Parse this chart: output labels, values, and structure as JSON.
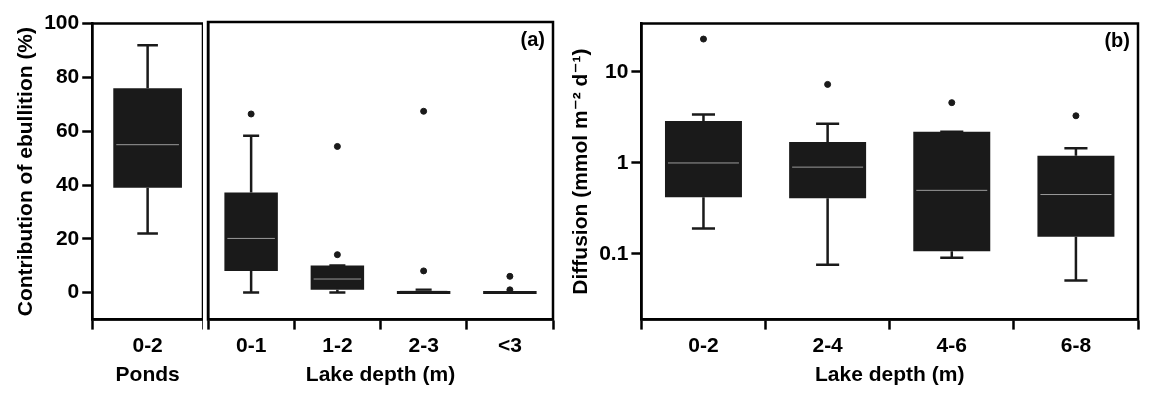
{
  "chart_data": [
    {
      "type": "box",
      "categories": [
        "0-2"
      ],
      "xlabel": "Ponds",
      "ylabel": "Contribution of ebullition (%)",
      "color": "#1a1a1a",
      "ylim": [
        -10,
        100
      ],
      "yticks": [
        0,
        20,
        40,
        60,
        80,
        100
      ],
      "boxes": [
        {
          "low": 22,
          "q1": 39,
          "median": 55,
          "q3": 76,
          "high": 92
        }
      ]
    },
    {
      "type": "box",
      "categories": [
        "0-1",
        "1-2",
        "2-3",
        "<3"
      ],
      "xlabel": "Lake depth (m)",
      "color": "#1a1a1a",
      "ylim": [
        -10,
        100
      ],
      "yticks": [
        0,
        20,
        40,
        60,
        80,
        100
      ],
      "tick_labels": "x",
      "annotations": [
        "(a)"
      ],
      "boxes": [
        {
          "low": 0,
          "q1": 8,
          "median": 20,
          "q3": 37,
          "high": 58,
          "outliers": [
            66
          ]
        },
        {
          "low": 0,
          "q1": 1,
          "median": 5,
          "q3": 10,
          "high": 10,
          "outliers": [
            14,
            54
          ]
        },
        {
          "low": 0,
          "q1": 0,
          "median": 0.5,
          "q3": 1,
          "high": 1,
          "outliers": [
            8,
            67
          ]
        },
        {
          "low": 0,
          "q1": 0,
          "median": 0,
          "q3": 0,
          "high": 0,
          "outliers": [
            1,
            6
          ]
        }
      ]
    },
    {
      "type": "box",
      "categories": [
        "0-2",
        "2-4",
        "4-6",
        "6-8"
      ],
      "xlabel": "Lake depth (m)",
      "ylabel": "Diffusion (mmol m⁻² d⁻¹)",
      "color": "#1a1a1a",
      "log": true,
      "ylim": [
        0.019,
        34
      ],
      "yticks": [
        0.1,
        1,
        10
      ],
      "annotations": [
        "(b)"
      ],
      "boxes": [
        {
          "low": 0.19,
          "q1": 0.42,
          "median": 1,
          "q3": 2.9,
          "high": 3.4,
          "outliers": [
            23
          ]
        },
        {
          "low": 0.076,
          "q1": 0.41,
          "median": 0.9,
          "q3": 1.7,
          "high": 2.7,
          "outliers": [
            7.3
          ]
        },
        {
          "low": 0.091,
          "q1": 0.107,
          "median": 0.5,
          "q3": 2.2,
          "high": 2.2,
          "outliers": [
            4.6
          ]
        },
        {
          "low": 0.051,
          "q1": 0.155,
          "median": 0.45,
          "q3": 1.2,
          "high": 1.45,
          "outliers": [
            3.3
          ]
        }
      ]
    }
  ]
}
